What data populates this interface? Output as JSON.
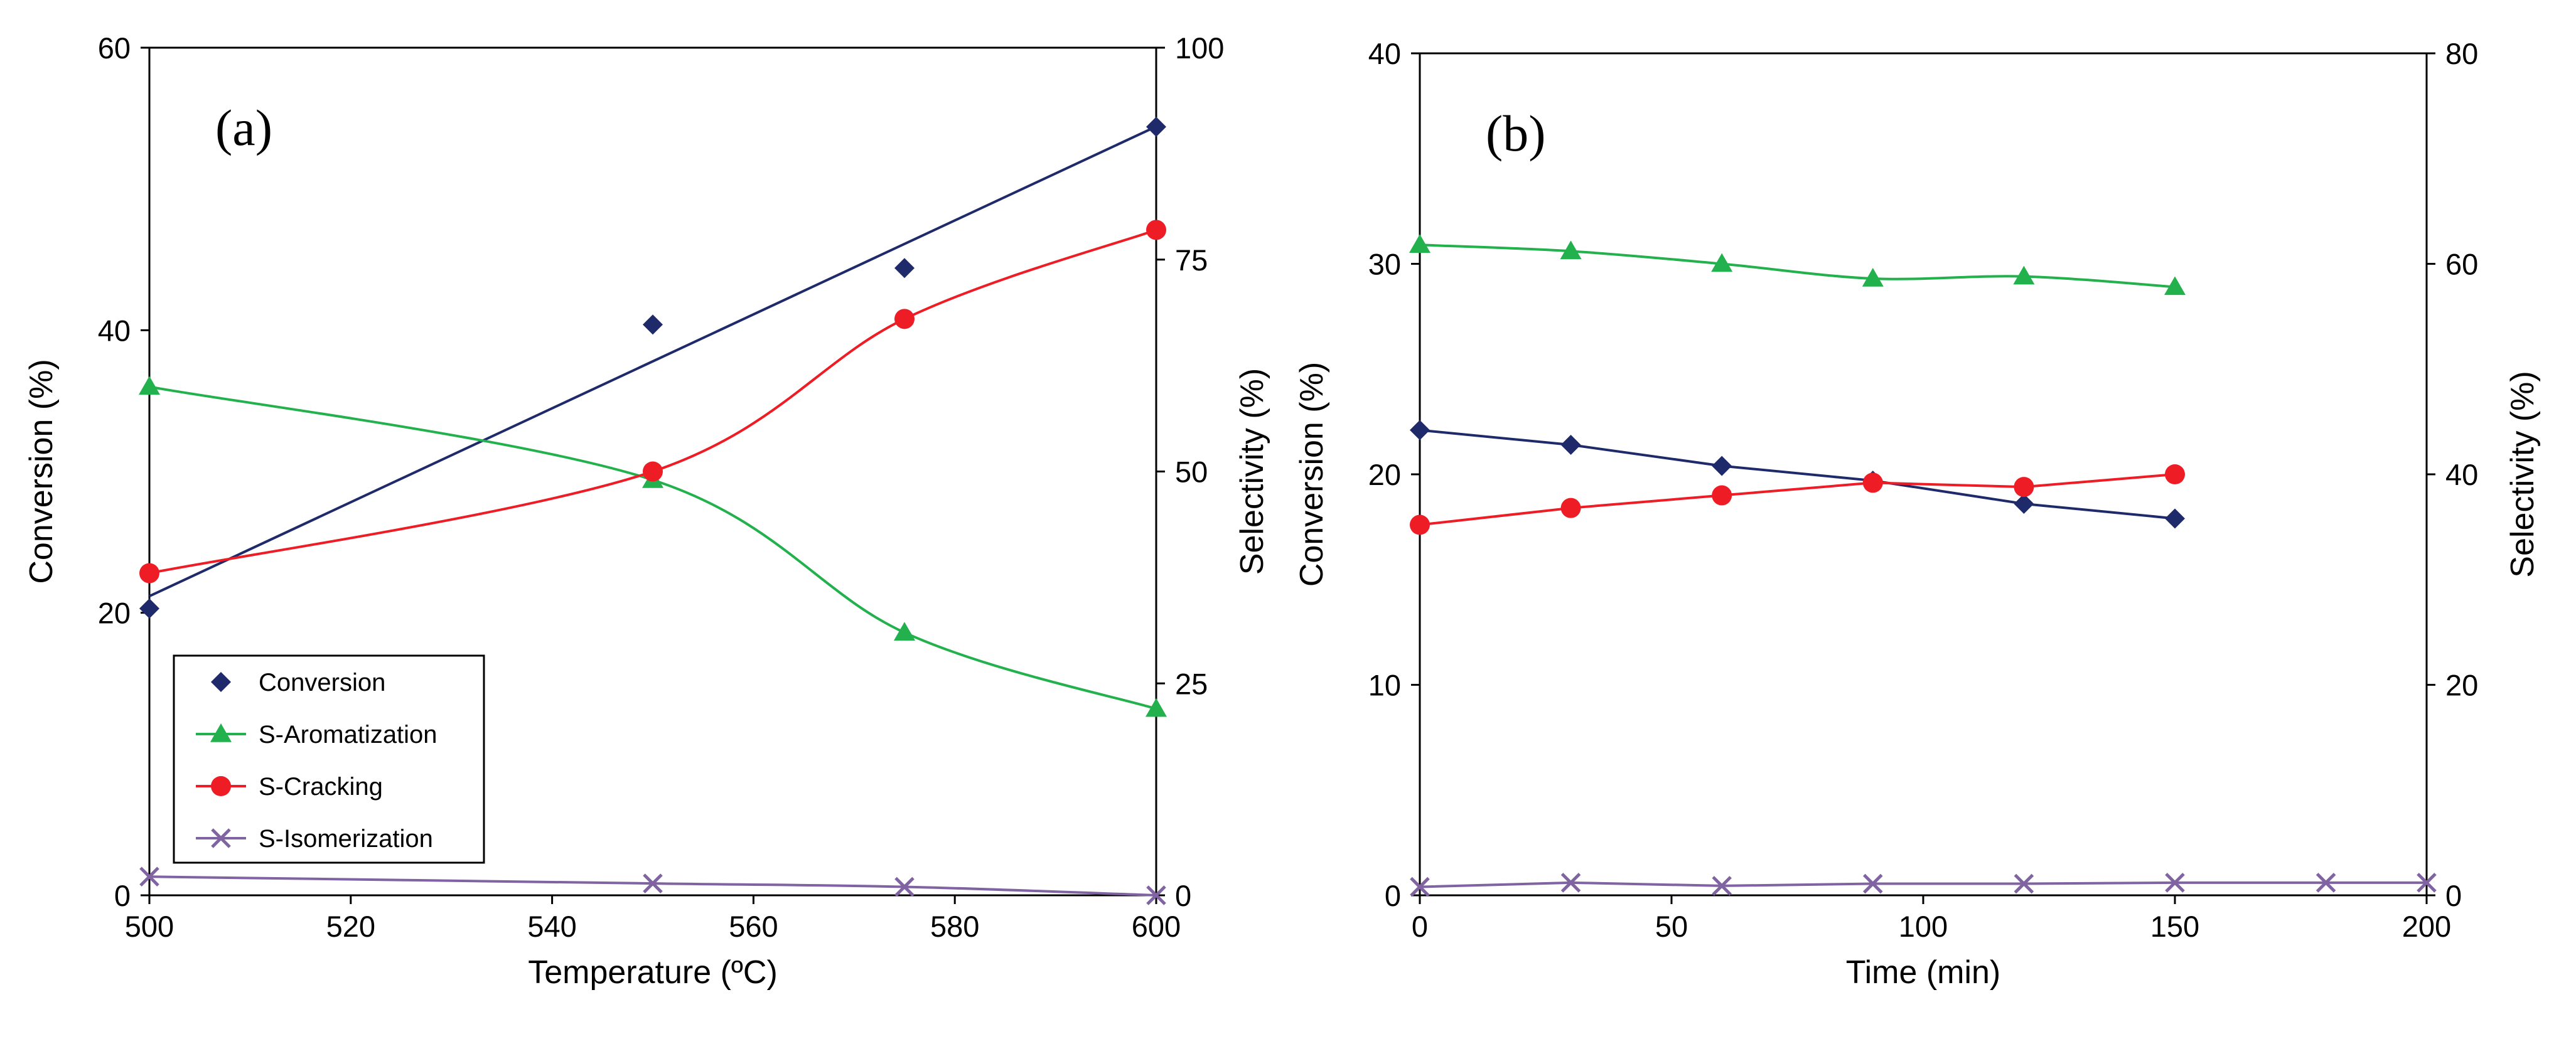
{
  "chart_data": [
    {
      "type": "line",
      "panel_label": "(a)",
      "xlabel": "Temperature (ºC)",
      "ylabel": "Conversion (%)",
      "y2label": "Selectivity (%)",
      "xlim": [
        500,
        600
      ],
      "ylim": [
        0,
        60
      ],
      "y2lim": [
        0,
        100
      ],
      "xticks": [
        500,
        520,
        540,
        560,
        580,
        600
      ],
      "yticks": [
        0,
        20,
        40,
        60
      ],
      "y2ticks": [
        0,
        25,
        50,
        75,
        100
      ],
      "legend_position": "lower-left",
      "series": [
        {
          "name": "Conversion",
          "axis": "left",
          "color": "#1f2a6b",
          "marker": "diamond",
          "x": [
            500,
            550,
            575,
            600
          ],
          "values": [
            20.3,
            40.4,
            44.4,
            54.4
          ],
          "fit": "linear"
        },
        {
          "name": "S-Aromatization",
          "axis": "right",
          "color": "#22b14c",
          "marker": "triangle",
          "x": [
            500,
            550,
            575,
            600
          ],
          "values": [
            60,
            49,
            31,
            22
          ],
          "fit": "smooth"
        },
        {
          "name": "S-Cracking",
          "axis": "right",
          "color": "#ee1c24",
          "marker": "circle",
          "x": [
            500,
            550,
            575,
            600
          ],
          "values": [
            38,
            50,
            68,
            78.5
          ],
          "fit": "smooth"
        },
        {
          "name": "S-Isomerization",
          "axis": "right",
          "color": "#8064a2",
          "marker": "x",
          "x": [
            500,
            550,
            575,
            600
          ],
          "values": [
            2.2,
            1.4,
            1.0,
            0
          ],
          "fit": "smooth"
        }
      ]
    },
    {
      "type": "line",
      "panel_label": "(b)",
      "xlabel": "Time (min)",
      "ylabel": "Conversion (%)",
      "y2label": "Selectivity (%)",
      "xlim": [
        0,
        200
      ],
      "ylim": [
        0,
        40
      ],
      "y2lim": [
        0,
        80
      ],
      "xticks": [
        0,
        50,
        100,
        150,
        200
      ],
      "yticks": [
        0,
        10,
        20,
        30,
        40
      ],
      "y2ticks": [
        0,
        20,
        40,
        60,
        80
      ],
      "series": [
        {
          "name": "S-Aromatization",
          "axis": "right",
          "color": "#22b14c",
          "marker": "triangle",
          "x": [
            0,
            30,
            60,
            90,
            120,
            150
          ],
          "values": [
            61.8,
            61.2,
            60,
            58.6,
            58.8,
            57.8
          ],
          "fit": "smooth"
        },
        {
          "name": "Conversion",
          "axis": "left",
          "color": "#1f2a6b",
          "marker": "diamond",
          "x": [
            0,
            30,
            60,
            90,
            120,
            150
          ],
          "values": [
            22.1,
            21.4,
            20.4,
            19.7,
            18.6,
            17.9
          ],
          "fit": "polyline"
        },
        {
          "name": "S-Cracking",
          "axis": "right",
          "color": "#ee1c24",
          "marker": "circle",
          "x": [
            0,
            30,
            60,
            90,
            120,
            150
          ],
          "values": [
            35.2,
            36.8,
            38,
            39.2,
            38.8,
            40
          ],
          "fit": "polyline"
        },
        {
          "name": "S-Isomerization",
          "axis": "right",
          "color": "#8064a2",
          "marker": "x",
          "x": [
            0,
            30,
            60,
            90,
            120,
            150,
            180,
            200
          ],
          "values": [
            0.8,
            1.2,
            0.9,
            1.1,
            1.1,
            1.2,
            1.2,
            1.2
          ],
          "fit": "polyline"
        }
      ]
    }
  ]
}
